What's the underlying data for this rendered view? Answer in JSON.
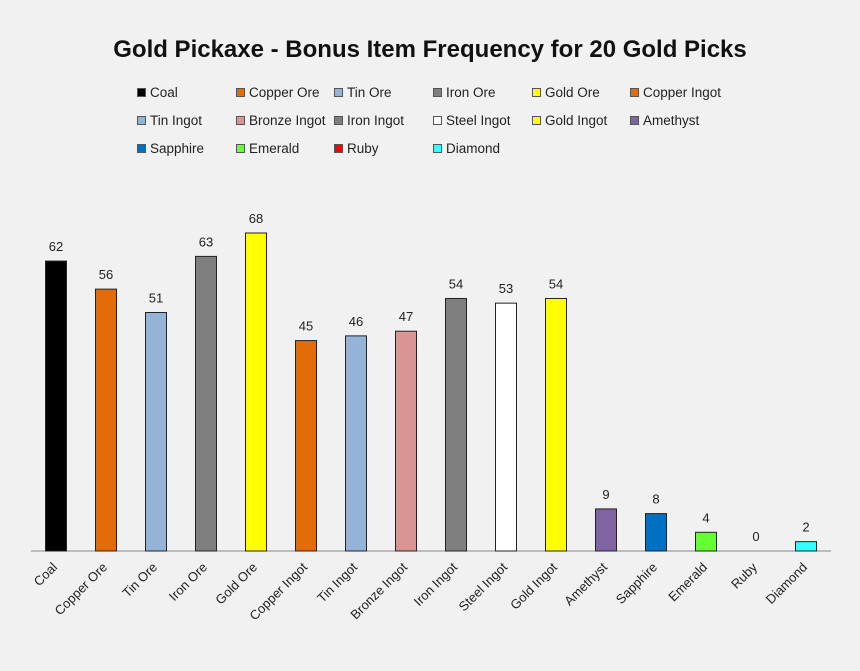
{
  "chart_data": {
    "type": "bar",
    "title": "Gold Pickaxe - Bonus Item Frequency for 20 Gold Picks",
    "xlabel": "",
    "ylabel": "",
    "ylim": [
      0,
      70
    ],
    "grid": false,
    "legend_position": "top",
    "categories": [
      "Coal",
      "Copper Ore",
      "Tin Ore",
      "Iron Ore",
      "Gold Ore",
      "Copper Ingot",
      "Tin Ingot",
      "Bronze Ingot",
      "Iron Ingot",
      "Steel Ingot",
      "Gold Ingot",
      "Amethyst",
      "Sapphire",
      "Emerald",
      "Ruby",
      "Diamond"
    ],
    "values": [
      62,
      56,
      51,
      63,
      68,
      45,
      46,
      47,
      54,
      53,
      54,
      9,
      8,
      4,
      0,
      2
    ],
    "colors": [
      "#000000",
      "#e36c0a",
      "#95b3d7",
      "#7f7f7f",
      "#ffff00",
      "#e36c0a",
      "#95b3d7",
      "#d99594",
      "#7f7f7f",
      "#ffffff",
      "#ffff00",
      "#8064a2",
      "#0070c0",
      "#66ff33",
      "#ff0000",
      "#33ffff"
    ],
    "legend": [
      "Coal",
      "Copper Ore",
      "Tin Ore",
      "Iron Ore",
      "Gold Ore",
      "Copper Ingot",
      "Tin Ingot",
      "Bronze Ingot",
      "Iron Ingot",
      "Steel Ingot",
      "Gold Ingot",
      "Amethyst",
      "Sapphire",
      "Emerald",
      "Ruby",
      "Diamond"
    ]
  }
}
